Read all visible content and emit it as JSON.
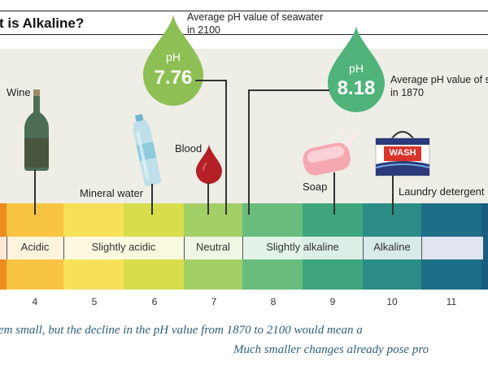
{
  "title": "t is Alkaline?",
  "drops": {
    "seawater_2100": {
      "prefix": "pH",
      "value": "7.76",
      "note_line1": "Average pH value of seawater",
      "note_line2": "in 2100"
    },
    "seawater_1870": {
      "prefix": "pH",
      "value": "8.18",
      "note_line1": "Average pH value of s",
      "note_line2": "in 1870"
    }
  },
  "objects": {
    "wine": "Wine",
    "mineral_water": "Mineral water",
    "blood": "Blood",
    "soap": "Soap",
    "laundry_detergent": "Laundry detergent",
    "wash_box_text": "WASH"
  },
  "bands": [
    "Acidic",
    "Slightly acidic",
    "Neutral",
    "Slightly alkaline",
    "Alkaline"
  ],
  "ticks": [
    "4",
    "5",
    "6",
    "7",
    "8",
    "9",
    "10",
    "11"
  ],
  "scale_colors": [
    "#f5a623",
    "#f9c949",
    "#f7e35a",
    "#d6dd4a",
    "#9fcf66",
    "#5fbb7d",
    "#3aa57d",
    "#2a8f85",
    "#1c6f86",
    "#1a5d7e"
  ],
  "footer": {
    "line1": "em small, but the decline in the pH value from 1870 to 2100 would mean a",
    "line2": "Much smaller changes already pose pro"
  }
}
